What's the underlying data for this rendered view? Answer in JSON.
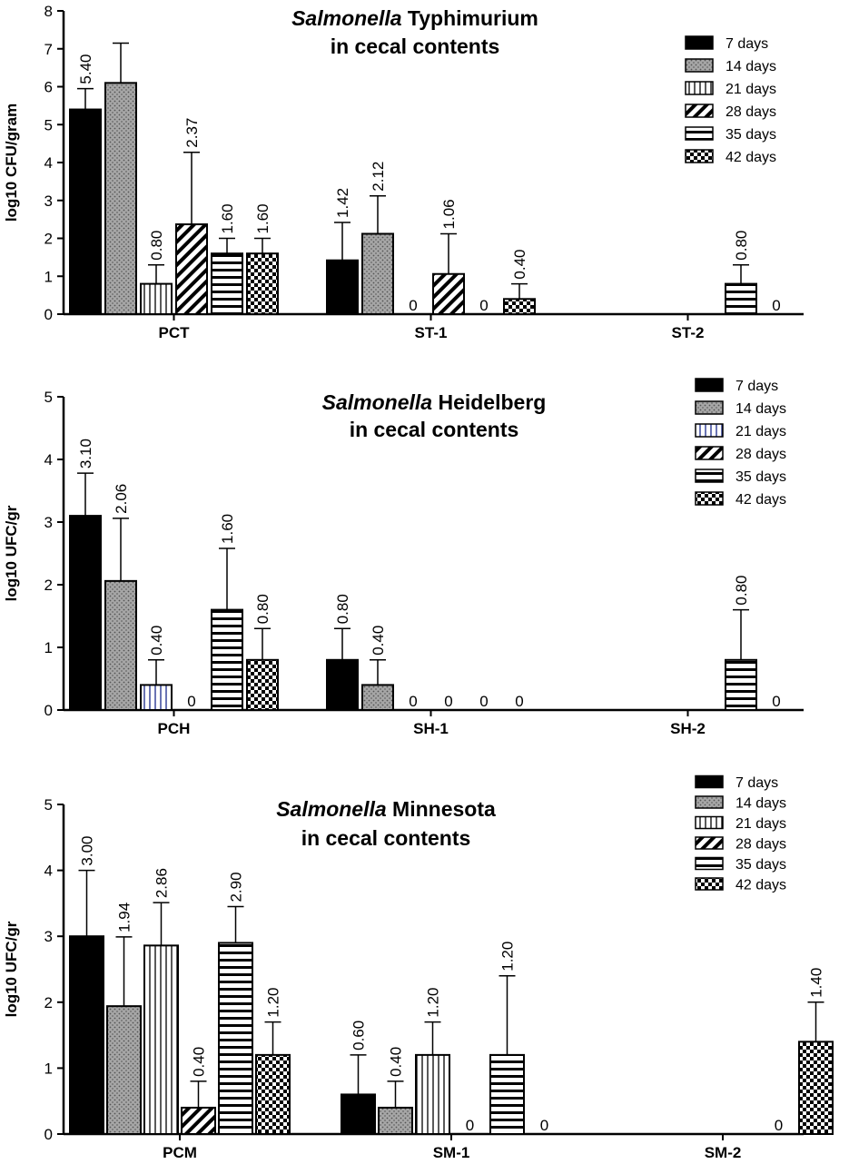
{
  "chart_data": [
    {
      "type": "bar",
      "title_italic": "Salmonella",
      "title_rest": "Typhimurium",
      "title_line2": "in cecal contents",
      "ylabel": "log10 CFU/gram",
      "ylim": [
        0,
        8
      ],
      "yticks": [
        "0",
        "1",
        "2",
        "3",
        "4",
        "5",
        "6",
        "7",
        "8"
      ],
      "categories": [
        "PCT",
        "ST-1",
        "ST-2"
      ],
      "series": [
        {
          "name": "7 days",
          "pattern": "solid",
          "values": [
            5.4,
            1.42,
            null
          ],
          "errors": [
            0.55,
            1.0,
            null
          ],
          "labels": [
            "5.40",
            "1.42",
            ""
          ]
        },
        {
          "name": "14 days",
          "pattern": "dots",
          "values": [
            6.1,
            2.12,
            null
          ],
          "errors": [
            1.05,
            1.0,
            null
          ],
          "labels": [
            "",
            "2.12",
            ""
          ]
        },
        {
          "name": "21 days",
          "pattern": "vlines",
          "values": [
            0.8,
            0,
            null
          ],
          "errors": [
            0.5,
            0,
            null
          ],
          "labels": [
            "0.80",
            "0",
            ""
          ]
        },
        {
          "name": "28 days",
          "pattern": "diag",
          "values": [
            2.37,
            1.06,
            null
          ],
          "errors": [
            1.9,
            1.06,
            null
          ],
          "labels": [
            "2.37",
            "1.06",
            ""
          ]
        },
        {
          "name": "35 days",
          "pattern": "hlines",
          "values": [
            1.6,
            0,
            0.8
          ],
          "errors": [
            0.4,
            0,
            0.5
          ],
          "labels": [
            "1.60",
            "0",
            "0.80"
          ]
        },
        {
          "name": "42 days",
          "pattern": "checker",
          "values": [
            1.6,
            0.4,
            0
          ],
          "errors": [
            0.4,
            0.4,
            0
          ],
          "labels": [
            "1.60",
            "0.40",
            "0"
          ]
        }
      ]
    },
    {
      "type": "bar",
      "title_italic": "Salmonella",
      "title_rest": "Heidelberg",
      "title_line2": "in cecal contents",
      "ylabel": "log10 UFC/gr",
      "ylim": [
        0,
        5
      ],
      "yticks": [
        "0",
        "1",
        "2",
        "3",
        "4",
        "5"
      ],
      "categories": [
        "PCH",
        "SH-1",
        "SH-2"
      ],
      "series": [
        {
          "name": "7 days",
          "pattern": "solid",
          "values": [
            3.1,
            0.8,
            null
          ],
          "errors": [
            0.68,
            0.5,
            null
          ],
          "labels": [
            "3.10",
            "0.80",
            ""
          ]
        },
        {
          "name": "14 days",
          "pattern": "dots",
          "values": [
            2.06,
            0.4,
            null
          ],
          "errors": [
            1.0,
            0.4,
            null
          ],
          "labels": [
            "2.06",
            "0.40",
            ""
          ]
        },
        {
          "name": "21 days",
          "pattern": "vlines-blue",
          "values": [
            0.4,
            0,
            null
          ],
          "errors": [
            0.4,
            0,
            null
          ],
          "labels": [
            "0.40",
            "0",
            ""
          ]
        },
        {
          "name": "28 days",
          "pattern": "diag",
          "values": [
            0,
            0,
            null
          ],
          "errors": [
            0,
            0,
            null
          ],
          "labels": [
            "0",
            "0",
            ""
          ]
        },
        {
          "name": "35 days",
          "pattern": "hlines",
          "values": [
            1.6,
            0,
            0.8
          ],
          "errors": [
            0.98,
            0,
            0.8
          ],
          "labels": [
            "1.60",
            "0",
            "0.80"
          ]
        },
        {
          "name": "42 days",
          "pattern": "checker",
          "values": [
            0.8,
            0,
            0
          ],
          "errors": [
            0.5,
            0,
            0
          ],
          "labels": [
            "0.80",
            "0",
            "0"
          ]
        }
      ]
    },
    {
      "type": "bar",
      "title_italic": "Salmonella",
      "title_rest": "Minnesota",
      "title_line2": "in cecal contents",
      "ylabel": "log10 UFC/gr",
      "ylim": [
        0,
        5
      ],
      "yticks": [
        "0",
        "1",
        "2",
        "3",
        "4",
        "5"
      ],
      "categories": [
        "PCM",
        "SM-1",
        "SM-2"
      ],
      "series": [
        {
          "name": "7 days",
          "pattern": "solid",
          "values": [
            3.0,
            0.6,
            null
          ],
          "errors": [
            1.0,
            0.6,
            null
          ],
          "labels": [
            "3.00",
            "0.60",
            ""
          ]
        },
        {
          "name": "14 days",
          "pattern": "dots",
          "values": [
            1.94,
            0.4,
            null
          ],
          "errors": [
            1.05,
            0.4,
            null
          ],
          "labels": [
            "1.94",
            "0.40",
            ""
          ]
        },
        {
          "name": "21 days",
          "pattern": "vlines",
          "values": [
            2.86,
            1.2,
            null
          ],
          "errors": [
            0.65,
            0.5,
            null
          ],
          "labels": [
            "2.86",
            "1.20",
            ""
          ]
        },
        {
          "name": "28 days",
          "pattern": "diag",
          "values": [
            0.4,
            0,
            null
          ],
          "errors": [
            0.4,
            0,
            null
          ],
          "labels": [
            "0.40",
            "0",
            ""
          ]
        },
        {
          "name": "35 days",
          "pattern": "hlines",
          "values": [
            2.9,
            1.2,
            0
          ],
          "errors": [
            0.55,
            1.2,
            0
          ],
          "labels": [
            "2.90",
            "1.20",
            "0"
          ]
        },
        {
          "name": "42 days",
          "pattern": "checker",
          "values": [
            1.2,
            0,
            1.4
          ],
          "errors": [
            0.5,
            0,
            0.6
          ],
          "labels": [
            "1.20",
            "0",
            "1.40"
          ]
        }
      ]
    }
  ]
}
